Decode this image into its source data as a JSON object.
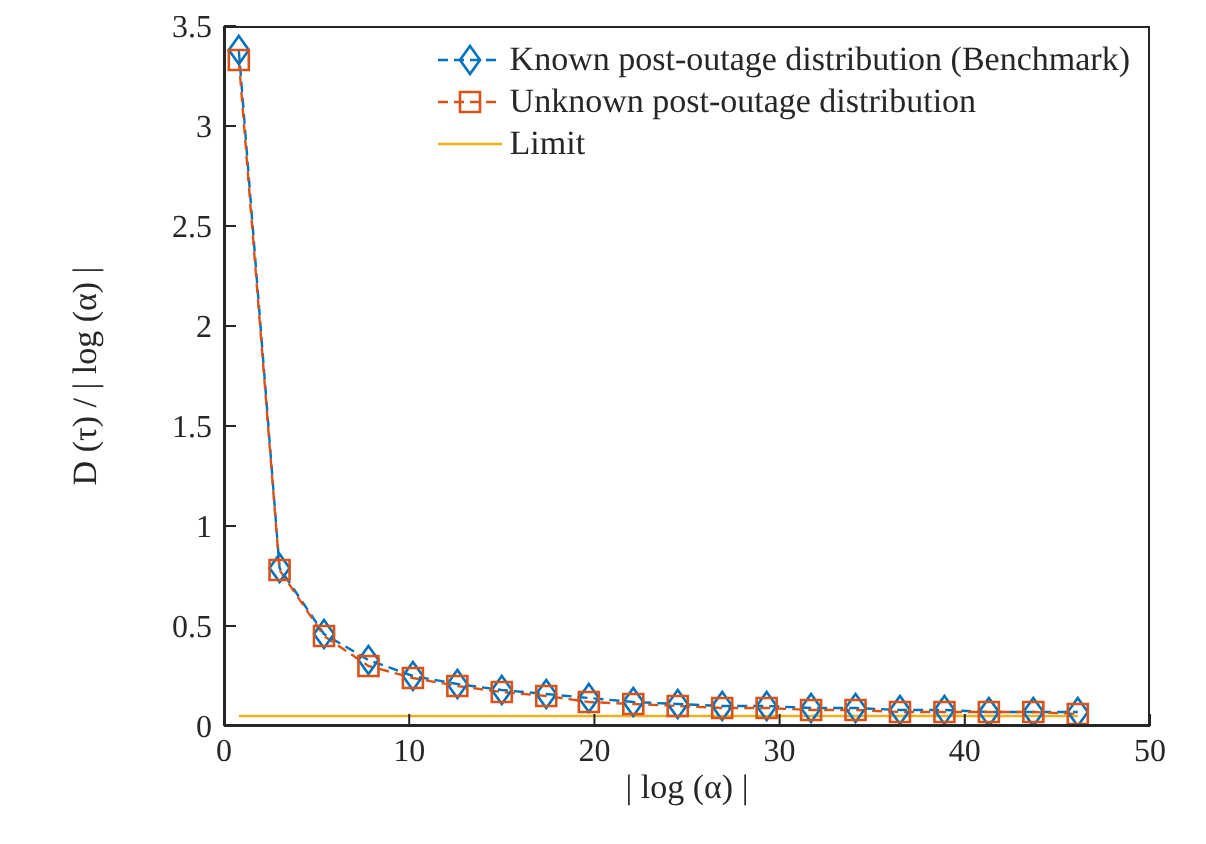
{
  "chart_data": {
    "type": "line",
    "xlabel": "| log (α) |",
    "ylabel": "D (τ) / | log (α) |",
    "xlim": [
      0,
      50
    ],
    "xticks": [
      0,
      10,
      20,
      30,
      40,
      50
    ],
    "ylim": [
      0,
      3.5
    ],
    "yticks": [
      0,
      0.5,
      1,
      1.5,
      2,
      2.5,
      3,
      3.5
    ],
    "grid": false,
    "legend": "top right",
    "x": [
      0.8,
      3.0,
      5.4,
      7.8,
      10.2,
      12.6,
      15.0,
      17.4,
      19.7,
      22.1,
      24.5,
      26.9,
      29.3,
      31.7,
      34.1,
      36.5,
      38.9,
      41.3,
      43.7,
      46.1
    ],
    "series": [
      {
        "name": "Known post-outage distribution (Benchmark)",
        "color": "#0072bd",
        "marker": "diamond",
        "line_style": "dashed",
        "values": [
          3.38,
          0.79,
          0.46,
          0.33,
          0.25,
          0.21,
          0.18,
          0.16,
          0.14,
          0.12,
          0.11,
          0.1,
          0.1,
          0.09,
          0.09,
          0.08,
          0.08,
          0.07,
          0.07,
          0.07
        ]
      },
      {
        "name": "Unknown post-outage distribution",
        "color": "#d95319",
        "marker": "square",
        "line_style": "dashed",
        "values": [
          3.33,
          0.78,
          0.45,
          0.3,
          0.24,
          0.2,
          0.17,
          0.15,
          0.12,
          0.11,
          0.1,
          0.09,
          0.09,
          0.08,
          0.08,
          0.07,
          0.07,
          0.07,
          0.07,
          0.06
        ]
      },
      {
        "name": "Limit",
        "color": "#edb120",
        "marker": "none",
        "line_style": "solid",
        "x": [
          0.8,
          46.1
        ],
        "values": [
          0.05,
          0.05
        ]
      }
    ]
  }
}
